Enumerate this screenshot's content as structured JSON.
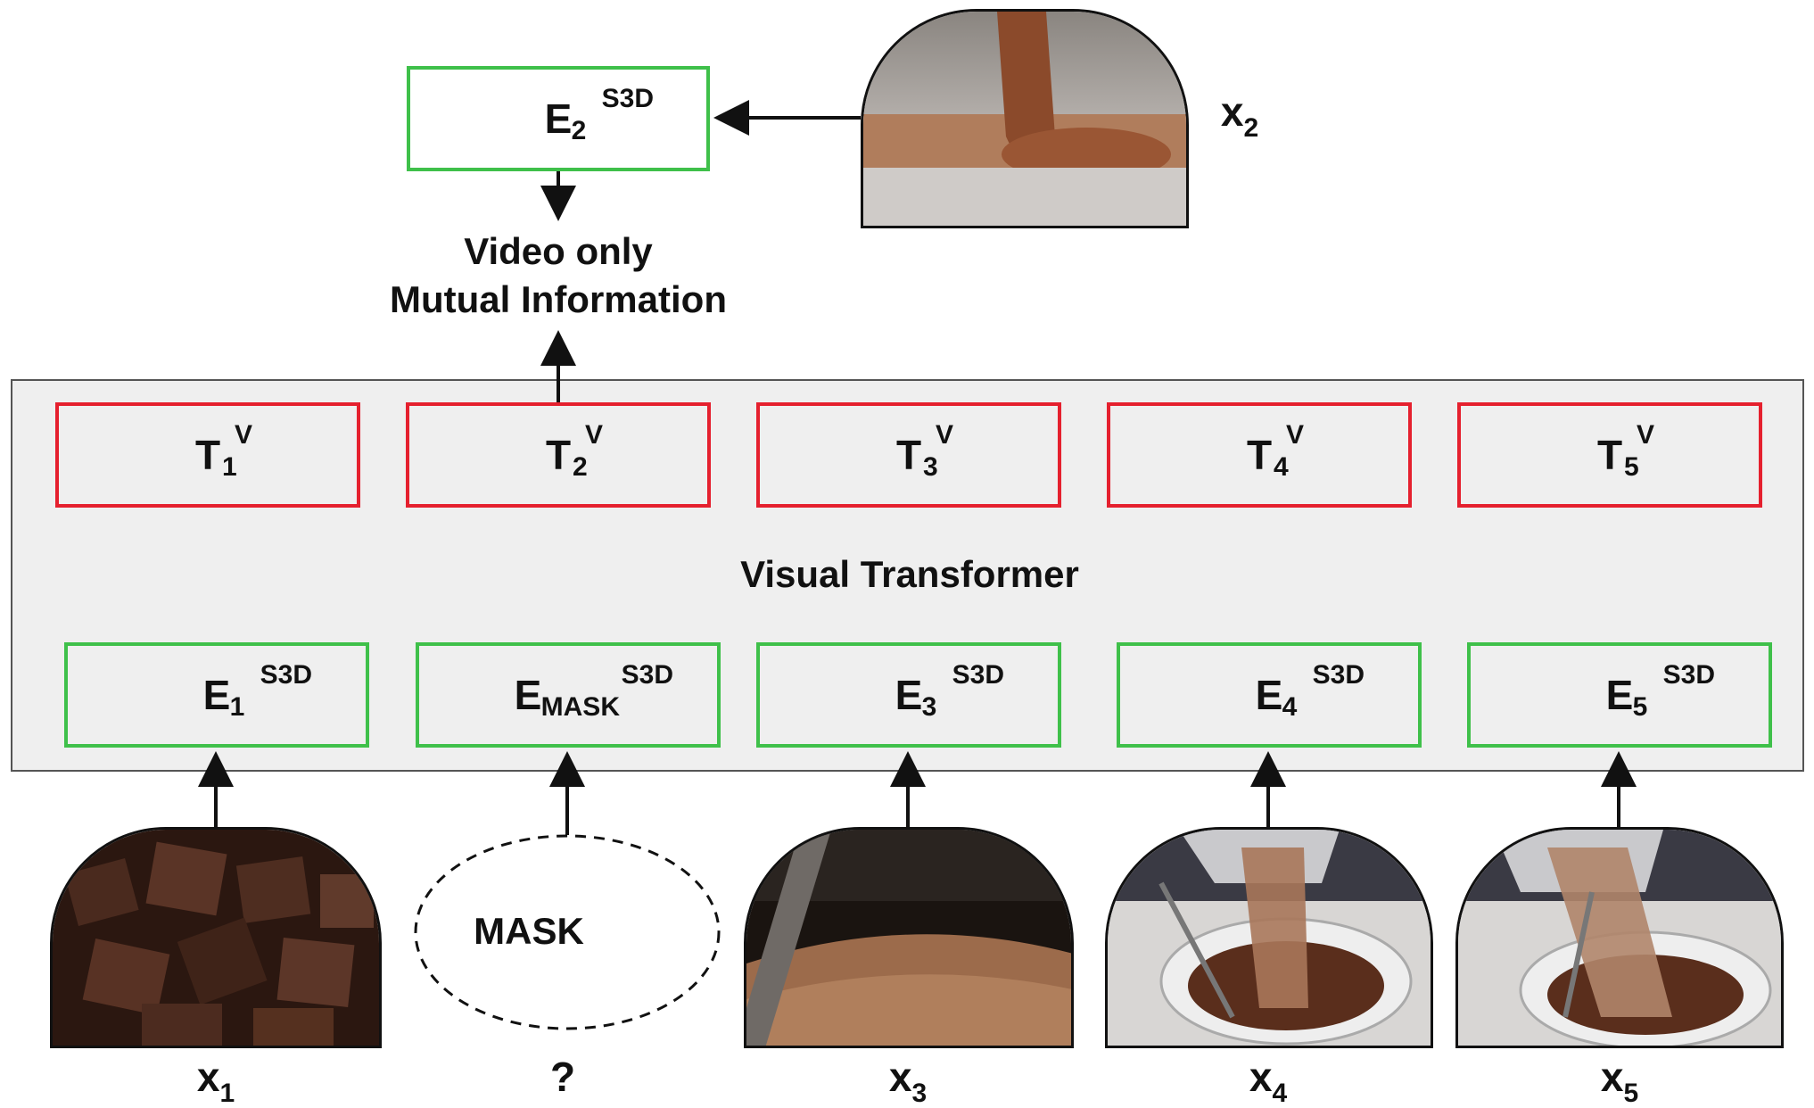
{
  "top_encoder": {
    "base": "E",
    "sub": "2",
    "sup": "S3D"
  },
  "top_input_label": {
    "base": "x",
    "sub": "2"
  },
  "objective": {
    "line1": "Video only",
    "line2": "Mutual Information"
  },
  "transformer_title": "Visual Transformer",
  "transformer_outputs": [
    {
      "base": "T",
      "sub": "1",
      "sup": "V"
    },
    {
      "base": "T",
      "sub": "2",
      "sup": "V"
    },
    {
      "base": "T",
      "sub": "3",
      "sup": "V"
    },
    {
      "base": "T",
      "sub": "4",
      "sup": "V"
    },
    {
      "base": "T",
      "sub": "5",
      "sup": "V"
    }
  ],
  "encoders": [
    {
      "base": "E",
      "sub": "1",
      "sup": "S3D"
    },
    {
      "base": "E",
      "sub": "MASK",
      "sup": "S3D"
    },
    {
      "base": "E",
      "sub": "3",
      "sup": "S3D"
    },
    {
      "base": "E",
      "sub": "4",
      "sup": "S3D"
    },
    {
      "base": "E",
      "sub": "5",
      "sup": "S3D"
    }
  ],
  "mask_text": "MASK",
  "inputs": [
    {
      "base": "x",
      "sub": "1"
    },
    {
      "base": "?",
      "sub": ""
    },
    {
      "base": "x",
      "sub": "3"
    },
    {
      "base": "x",
      "sub": "4"
    },
    {
      "base": "x",
      "sub": "5"
    }
  ],
  "colors": {
    "output_border": "#e5202e",
    "encoder_border": "#3fc04a",
    "panel": "#efefef"
  },
  "frame_contents": [
    "chopped-chocolate-image",
    "melted-chocolate-pour-image",
    "grated-chocolate-image",
    "cocoa-pour-bowl-image",
    "cocoa-pour-bowl-image"
  ]
}
